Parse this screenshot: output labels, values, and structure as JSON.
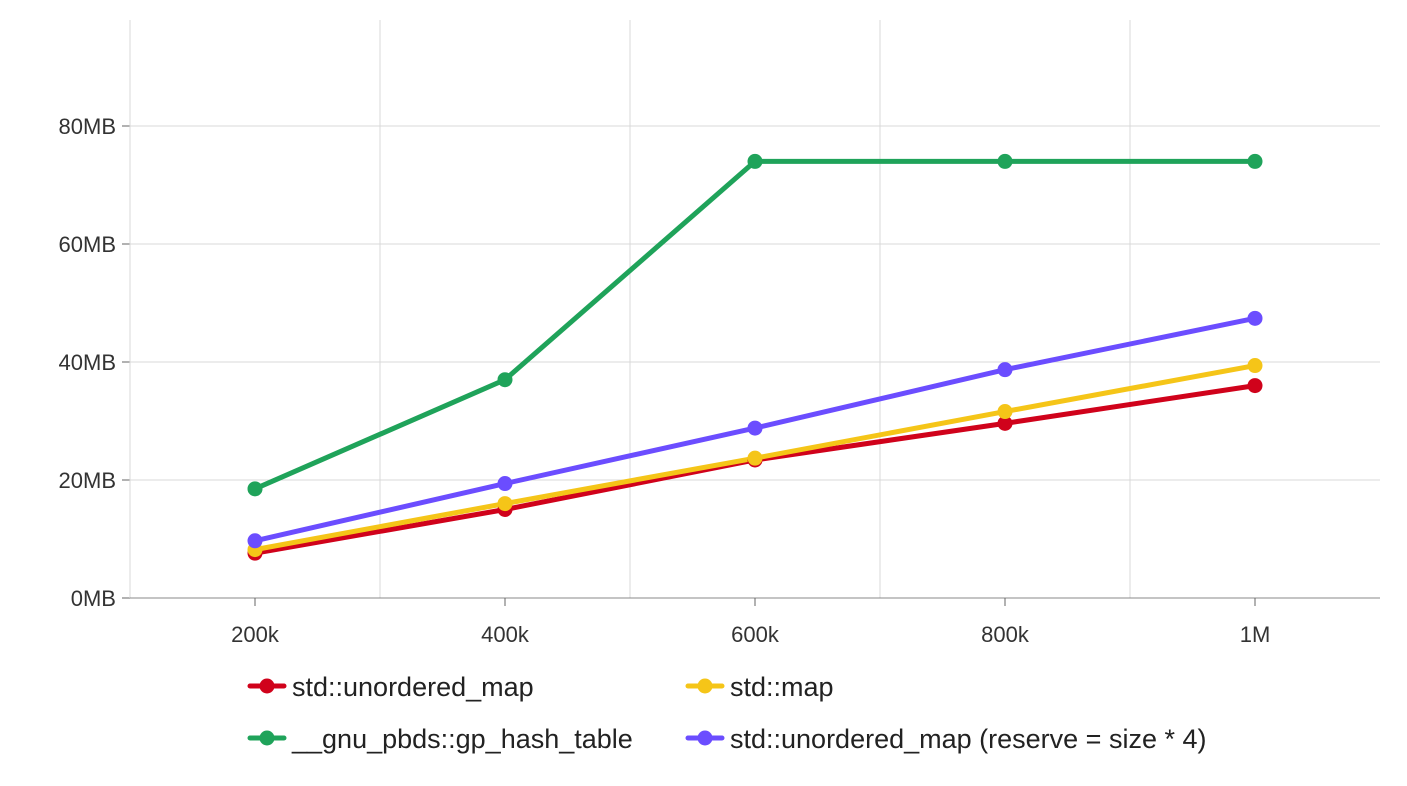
{
  "chart_data": {
    "type": "line",
    "title": "",
    "xlabel": "",
    "ylabel": "",
    "x": [
      200000,
      400000,
      600000,
      800000,
      1000000
    ],
    "xlim": [
      100000,
      1100000
    ],
    "ylim": [
      0,
      80
    ],
    "x_ticks": [
      {
        "value": 200000,
        "label": "200k"
      },
      {
        "value": 400000,
        "label": "400k"
      },
      {
        "value": 600000,
        "label": "600k"
      },
      {
        "value": 800000,
        "label": "800k"
      },
      {
        "value": 1000000,
        "label": "1M"
      }
    ],
    "x_grid_values": [
      100000,
      300000,
      500000,
      700000,
      900000
    ],
    "y_ticks": [
      {
        "value": 0,
        "label": "0MB"
      },
      {
        "value": 20,
        "label": "20MB"
      },
      {
        "value": 40,
        "label": "40MB"
      },
      {
        "value": 60,
        "label": "60MB"
      },
      {
        "value": 80,
        "label": "80MB"
      }
    ],
    "grid": true,
    "legend_position": "bottom",
    "series": [
      {
        "name": "std::unordered_map",
        "color": "#d0021b",
        "values": [
          7.6,
          15.0,
          23.4,
          29.6,
          36.0
        ]
      },
      {
        "name": "std::map",
        "color": "#f5c518",
        "values": [
          8.2,
          16.0,
          23.7,
          31.6,
          39.4
        ]
      },
      {
        "name": "__gnu_pbds::gp_hash_table",
        "color": "#1fa35a",
        "values": [
          18.5,
          37.0,
          74.0,
          74.0,
          74.0
        ]
      },
      {
        "name": "std::unordered_map (reserve = size * 4)",
        "color": "#6b4dff",
        "values": [
          9.7,
          19.4,
          28.8,
          38.7,
          47.4
        ]
      }
    ]
  }
}
